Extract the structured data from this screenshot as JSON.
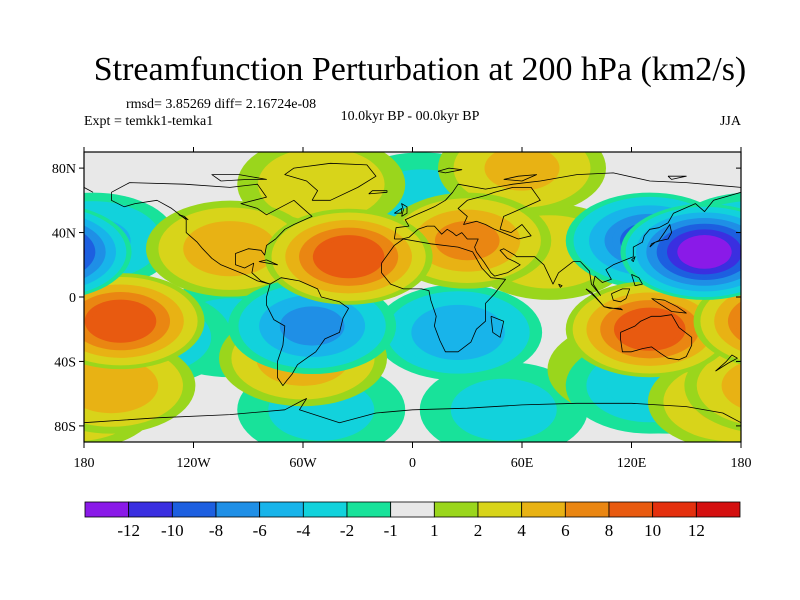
{
  "title": "Streamfunction Perturbation at 200 hPa (km2/s)",
  "stats": "rmsd= 3.85269 diff= 2.16724e-08",
  "experiment": "Expt = temkk1-temka1",
  "period": "10.0kyr BP - 00.0kyr BP",
  "season": "JJA",
  "lat_ticks": [
    "80N",
    "40N",
    "0",
    "40S",
    "80S"
  ],
  "lon_ticks": [
    "180",
    "120W",
    "60W",
    "0",
    "60E",
    "120E",
    "180"
  ],
  "colorbar": {
    "labels": [
      "-12",
      "-10",
      "-8",
      "-6",
      "-4",
      "-2",
      "-1",
      "1",
      "2",
      "4",
      "6",
      "8",
      "10",
      "12"
    ],
    "colors": [
      "#8a1ae8",
      "#3a2fe0",
      "#1d5fe0",
      "#1f8fe6",
      "#18b4ea",
      "#12d2dc",
      "#18e29a",
      "#e8e8e8",
      "#9ad61c",
      "#d8d41a",
      "#e8b214",
      "#ea8612",
      "#e85a10",
      "#e4300e",
      "#d41010"
    ]
  },
  "chart_data": {
    "type": "heatmap",
    "title": "Streamfunction Perturbation at 200 hPa (km2/s)",
    "xlim": [
      -180,
      180
    ],
    "ylim": [
      -90,
      90
    ],
    "levels": [
      -12,
      -10,
      -8,
      -6,
      -4,
      -2,
      -1,
      1,
      2,
      4,
      6,
      8,
      10,
      12
    ],
    "anomaly_centers": [
      {
        "lon": 160,
        "lat": 28,
        "value": -12
      },
      {
        "lon": 130,
        "lat": 35,
        "value": -8
      },
      {
        "lon": -175,
        "lat": 35,
        "value": -4
      },
      {
        "lon": -55,
        "lat": -18,
        "value": -6
      },
      {
        "lon": 25,
        "lat": -22,
        "value": -5
      },
      {
        "lon": -145,
        "lat": -25,
        "value": -3
      },
      {
        "lon": -100,
        "lat": -20,
        "value": -2
      },
      {
        "lon": -50,
        "lat": -70,
        "value": -2
      },
      {
        "lon": 50,
        "lat": -70,
        "value": -2
      },
      {
        "lon": 140,
        "lat": -55,
        "value": -2
      },
      {
        "lon": 5,
        "lat": 60,
        "value": -2
      },
      {
        "lon": 30,
        "lat": 35,
        "value": 6
      },
      {
        "lon": -35,
        "lat": 25,
        "value": 9
      },
      {
        "lon": 130,
        "lat": -20,
        "value": 9
      },
      {
        "lon": -160,
        "lat": -15,
        "value": 9
      },
      {
        "lon": -165,
        "lat": -55,
        "value": 5
      },
      {
        "lon": -100,
        "lat": 30,
        "value": 5
      },
      {
        "lon": -60,
        "lat": -38,
        "value": 5
      },
      {
        "lon": 75,
        "lat": 28,
        "value": 3
      },
      {
        "lon": 60,
        "lat": 80,
        "value": 4
      },
      {
        "lon": -50,
        "lat": 70,
        "value": 3
      },
      {
        "lon": 175,
        "lat": -65,
        "value": 4
      },
      {
        "lon": 120,
        "lat": -45,
        "value": 2
      },
      {
        "lon": 130,
        "lat": -55,
        "value": -3
      }
    ]
  }
}
